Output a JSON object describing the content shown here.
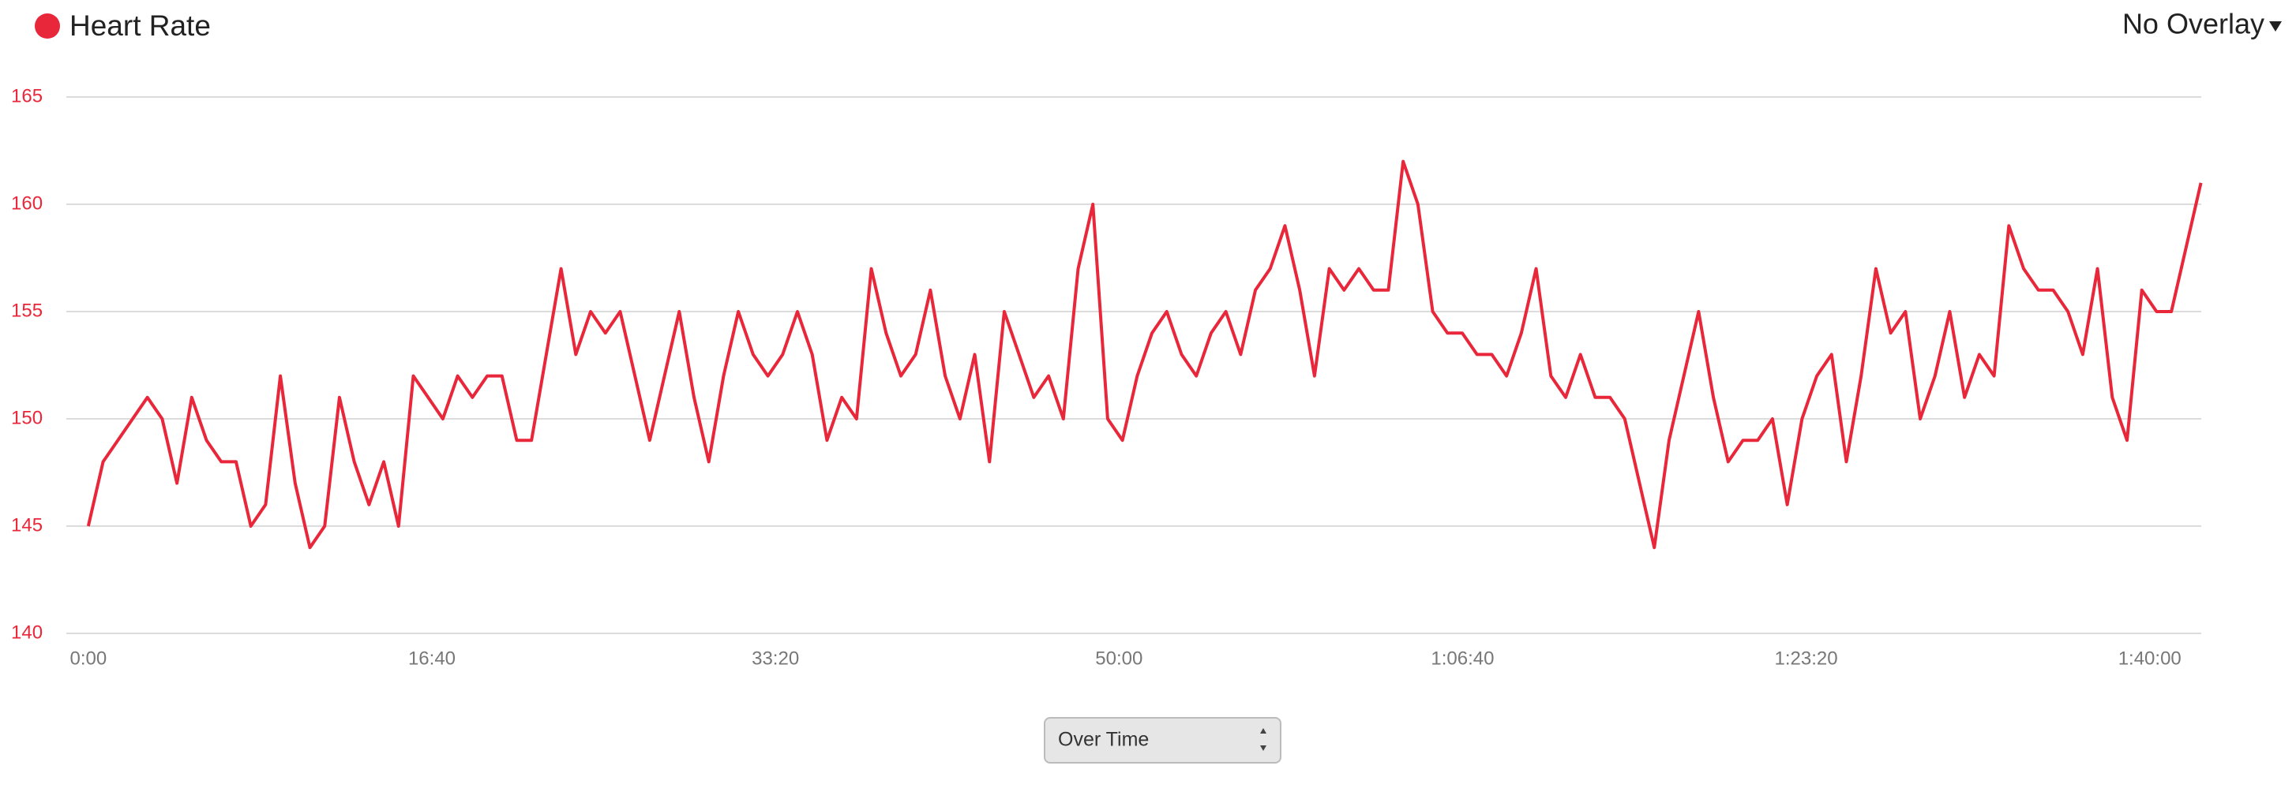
{
  "chart_data": {
    "type": "line",
    "x": [
      0,
      43,
      86,
      129,
      172,
      215,
      258,
      301,
      344,
      387,
      430,
      473,
      516,
      559,
      602,
      645,
      688,
      731,
      774,
      817,
      860,
      903,
      946,
      989,
      1032,
      1075,
      1118,
      1161,
      1204,
      1247,
      1290,
      1333,
      1376,
      1419,
      1462,
      1505,
      1548,
      1591,
      1634,
      1677,
      1720,
      1763,
      1806,
      1849,
      1892,
      1935,
      1978,
      2021,
      2064,
      2107,
      2150,
      2193,
      2236,
      2279,
      2322,
      2365,
      2408,
      2451,
      2494,
      2537,
      2580,
      2623,
      2666,
      2709,
      2752,
      2795,
      2838,
      2881,
      2924,
      2967,
      3010,
      3053,
      3096,
      3139,
      3182,
      3225,
      3268,
      3311,
      3354,
      3397,
      3440,
      3483,
      3526,
      3569,
      3612,
      3655,
      3698,
      3741,
      3784,
      3827,
      3870,
      3913,
      3956,
      3999,
      4042,
      4085,
      4128,
      4171,
      4214,
      4257,
      4300,
      4343,
      4386,
      4429,
      4472,
      4515,
      4558,
      4601,
      4644,
      4687,
      4730,
      4773,
      4816,
      4859,
      4902,
      4945,
      4988,
      5031,
      5074,
      5117,
      5160,
      5203,
      5246,
      5289,
      5332,
      5375,
      5418,
      5461,
      5504,
      5547,
      5590,
      5633,
      5676,
      5719,
      5762,
      5805,
      5848,
      5891,
      5934,
      5977,
      6020,
      6063,
      6106,
      6149
    ],
    "series": [
      {
        "name": "Heart Rate",
        "color": "#e8273a",
        "values": [
          145,
          148,
          149,
          150,
          151,
          150,
          147,
          151,
          149,
          148,
          148,
          145,
          146,
          152,
          147,
          144,
          145,
          151,
          148,
          146,
          148,
          145,
          152,
          151,
          150,
          152,
          151,
          152,
          152,
          149,
          149,
          153,
          157,
          153,
          155,
          154,
          155,
          152,
          149,
          152,
          155,
          151,
          148,
          152,
          155,
          153,
          152,
          153,
          155,
          153,
          149,
          151,
          150,
          157,
          154,
          152,
          153,
          156,
          152,
          150,
          153,
          148,
          155,
          153,
          151,
          152,
          150,
          157,
          160,
          150,
          149,
          152,
          154,
          155,
          153,
          152,
          154,
          155,
          153,
          156,
          157,
          159,
          156,
          152,
          157,
          156,
          157,
          156,
          156,
          162,
          160,
          155,
          154,
          154,
          153,
          153,
          152,
          154,
          157,
          152,
          151,
          153,
          151,
          151,
          150,
          147,
          144,
          149,
          152,
          155,
          151,
          148,
          149,
          149,
          150,
          146,
          150,
          152,
          153,
          148,
          152,
          157,
          154,
          155,
          150,
          152,
          155,
          151,
          153,
          152,
          159,
          157,
          156,
          156,
          155,
          153,
          157,
          151,
          149,
          156,
          155,
          155,
          158,
          161
        ]
      }
    ],
    "xlim": [
      -64,
      6150
    ],
    "xticks": [
      {
        "value": 0,
        "label": "0:00"
      },
      {
        "value": 1000,
        "label": "16:40"
      },
      {
        "value": 2000,
        "label": "33:20"
      },
      {
        "value": 3000,
        "label": "50:00"
      },
      {
        "value": 4000,
        "label": "1:06:40"
      },
      {
        "value": 5000,
        "label": "1:23:20"
      },
      {
        "value": 6000,
        "label": "1:40:00"
      }
    ],
    "ylim": [
      140,
      165
    ],
    "yticks": [
      140,
      145,
      150,
      155,
      160,
      165
    ],
    "grid": true
  },
  "controls": {
    "overlay": "No Overlay",
    "mode": "Over Time"
  }
}
